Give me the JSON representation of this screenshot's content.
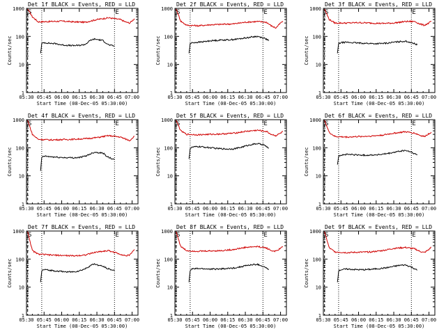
{
  "chart_data": [
    {
      "type": "line",
      "title": "Det 1f BLACK = Events, RED = LLD",
      "xlabel": "Start Time (08-Dec-05 05:30:00)",
      "ylabel": "Counts/sec",
      "x_tick_labels": [
        "05:30",
        "05:45",
        "06:00",
        "06:15",
        "06:30",
        "06:45",
        "07:00"
      ],
      "y_tick_labels": [
        "1",
        "10",
        "100",
        "1000"
      ],
      "ylim": [
        1,
        1000
      ],
      "y_scale": "log",
      "corner_left": "S",
      "corner_right": "E",
      "series": [
        {
          "color": "#d00000",
          "x": [
            1,
            5,
            10,
            20,
            30,
            40,
            50,
            60,
            70,
            80,
            85,
            88,
            90,
            92
          ],
          "y": [
            950,
            500,
            330,
            340,
            350,
            330,
            320,
            400,
            460,
            400,
            320,
            300,
            360,
            430
          ]
        },
        {
          "color": "#000000",
          "x": [
            12,
            13,
            15,
            20,
            25,
            30,
            35,
            40,
            45,
            50,
            55,
            58,
            60,
            65,
            70,
            75
          ],
          "y": [
            25,
            55,
            60,
            57,
            55,
            50,
            48,
            47,
            48,
            52,
            75,
            80,
            78,
            72,
            50,
            45
          ]
        }
      ]
    },
    {
      "type": "line",
      "title": "Det 2f BLACK = Events, RED = LLD",
      "xlabel": "Start Time (08-Dec-05 05:30:00)",
      "ylabel": "Counts/sec",
      "x_tick_labels": [
        "05:30",
        "05:45",
        "06:00",
        "06:15",
        "06:30",
        "06:45",
        "07:00"
      ],
      "y_tick_labels": [
        "1",
        "10",
        "100",
        "1000"
      ],
      "ylim": [
        1,
        1000
      ],
      "y_scale": "log",
      "corner_left": "S",
      "corner_right": "E",
      "series": [
        {
          "color": "#d00000",
          "x": [
            1,
            5,
            10,
            20,
            30,
            40,
            50,
            60,
            70,
            78,
            82,
            86,
            90,
            92
          ],
          "y": [
            950,
            350,
            250,
            240,
            260,
            270,
            280,
            320,
            340,
            320,
            240,
            200,
            300,
            350
          ]
        },
        {
          "color": "#000000",
          "x": [
            12,
            13,
            15,
            20,
            25,
            30,
            35,
            40,
            45,
            50,
            55,
            60,
            65,
            70,
            75,
            78,
            80
          ],
          "y": [
            25,
            55,
            60,
            62,
            65,
            70,
            72,
            75,
            75,
            78,
            82,
            88,
            95,
            100,
            90,
            80,
            70
          ]
        }
      ]
    },
    {
      "type": "line",
      "title": "Det 3f BLACK = Events, RED = LLD",
      "xlabel": "Start Time (08-Dec-05 05:30:00)",
      "ylabel": "Counts/sec",
      "x_tick_labels": [
        "05:30",
        "05:45",
        "06:00",
        "06:15",
        "06:30",
        "06:45",
        "07:00"
      ],
      "y_tick_labels": [
        "1",
        "10",
        "100",
        "1000"
      ],
      "ylim": [
        1,
        1000
      ],
      "y_scale": "log",
      "corner_left": "S",
      "corner_right": "E",
      "series": [
        {
          "color": "#d00000",
          "x": [
            1,
            5,
            10,
            20,
            30,
            40,
            50,
            60,
            70,
            78,
            82,
            86,
            90,
            92
          ],
          "y": [
            950,
            400,
            300,
            300,
            310,
            300,
            290,
            300,
            340,
            340,
            280,
            250,
            300,
            350
          ]
        },
        {
          "color": "#000000",
          "x": [
            12,
            13,
            15,
            20,
            25,
            30,
            35,
            40,
            45,
            50,
            55,
            60,
            65,
            70,
            75,
            78,
            80
          ],
          "y": [
            25,
            55,
            60,
            62,
            60,
            58,
            57,
            56,
            55,
            56,
            58,
            62,
            65,
            68,
            60,
            55,
            50
          ]
        }
      ]
    },
    {
      "type": "line",
      "title": "Det 4f BLACK = Events, RED = LLD",
      "xlabel": "Start Time (08-Dec-05 05:30:00)",
      "ylabel": "Counts/sec",
      "x_tick_labels": [
        "05:30",
        "05:45",
        "06:00",
        "06:15",
        "06:30",
        "06:45",
        "07:00"
      ],
      "y_tick_labels": [
        "1",
        "10",
        "100",
        "1000"
      ],
      "ylim": [
        1,
        1000
      ],
      "y_scale": "log",
      "corner_left": "S",
      "corner_right": "E",
      "series": [
        {
          "color": "#d00000",
          "x": [
            1,
            5,
            10,
            20,
            30,
            40,
            50,
            60,
            70,
            80,
            85,
            88,
            90,
            92
          ],
          "y": [
            950,
            300,
            200,
            190,
            195,
            200,
            210,
            230,
            270,
            240,
            200,
            180,
            220,
            260
          ]
        },
        {
          "color": "#000000",
          "x": [
            12,
            13,
            15,
            20,
            25,
            30,
            35,
            40,
            45,
            50,
            55,
            58,
            60,
            65,
            70,
            75
          ],
          "y": [
            15,
            45,
            50,
            48,
            46,
            45,
            44,
            44,
            45,
            50,
            62,
            70,
            68,
            65,
            45,
            38
          ]
        }
      ]
    },
    {
      "type": "line",
      "title": "Det 5f BLACK = Events, RED = LLD",
      "xlabel": "Start Time (08-Dec-05 05:30:00)",
      "ylabel": "Counts/sec",
      "x_tick_labels": [
        "05:30",
        "05:45",
        "06:00",
        "06:15",
        "06:30",
        "06:45",
        "07:00"
      ],
      "y_tick_labels": [
        "1",
        "10",
        "100",
        "1000"
      ],
      "ylim": [
        1,
        1000
      ],
      "y_scale": "log",
      "corner_left": "S",
      "corner_right": "E",
      "series": [
        {
          "color": "#d00000",
          "x": [
            1,
            5,
            10,
            20,
            30,
            40,
            50,
            60,
            70,
            78,
            82,
            86,
            90,
            92
          ],
          "y": [
            950,
            400,
            300,
            290,
            300,
            310,
            330,
            380,
            420,
            380,
            300,
            270,
            330,
            380
          ]
        },
        {
          "color": "#000000",
          "x": [
            12,
            13,
            15,
            20,
            25,
            30,
            35,
            40,
            45,
            50,
            55,
            60,
            65,
            70,
            75,
            78,
            80
          ],
          "y": [
            40,
            95,
            105,
            110,
            105,
            100,
            95,
            92,
            90,
            92,
            100,
            115,
            130,
            140,
            130,
            110,
            95
          ]
        }
      ]
    },
    {
      "type": "line",
      "title": "Det 6f BLACK = Events, RED = LLD",
      "xlabel": "Start Time (08-Dec-05 05:30:00)",
      "ylabel": "Counts/sec",
      "x_tick_labels": [
        "05:30",
        "05:45",
        "06:00",
        "06:15",
        "06:30",
        "06:45",
        "07:00"
      ],
      "y_tick_labels": [
        "1",
        "10",
        "100",
        "1000"
      ],
      "ylim": [
        1,
        1000
      ],
      "y_scale": "log",
      "corner_left": "S",
      "corner_right": "E",
      "series": [
        {
          "color": "#d00000",
          "x": [
            1,
            5,
            10,
            20,
            30,
            40,
            50,
            60,
            70,
            78,
            82,
            86,
            90,
            92
          ],
          "y": [
            950,
            350,
            250,
            240,
            250,
            260,
            280,
            330,
            370,
            330,
            280,
            250,
            320,
            360
          ]
        },
        {
          "color": "#000000",
          "x": [
            12,
            13,
            15,
            20,
            25,
            30,
            35,
            40,
            45,
            50,
            55,
            60,
            65,
            70,
            75,
            78,
            80
          ],
          "y": [
            25,
            50,
            55,
            58,
            57,
            55,
            54,
            55,
            56,
            58,
            62,
            68,
            75,
            80,
            70,
            60,
            55
          ]
        }
      ]
    },
    {
      "type": "line",
      "title": "Det 7f BLACK = Events, RED = LLD",
      "xlabel": "Start Time (08-Dec-05 05:30:00)",
      "ylabel": "Counts/sec",
      "x_tick_labels": [
        "05:30",
        "05:45",
        "06:00",
        "06:15",
        "06:30",
        "06:45",
        "07:00"
      ],
      "y_tick_labels": [
        "1",
        "10",
        "100",
        "1000"
      ],
      "ylim": [
        1,
        1000
      ],
      "y_scale": "log",
      "corner_left": "S",
      "corner_right": "E",
      "series": [
        {
          "color": "#d00000",
          "x": [
            1,
            5,
            10,
            20,
            30,
            40,
            50,
            60,
            70,
            80,
            85,
            88,
            90,
            92
          ],
          "y": [
            950,
            200,
            150,
            140,
            135,
            130,
            140,
            180,
            200,
            150,
            130,
            140,
            180,
            220
          ]
        },
        {
          "color": "#000000",
          "x": [
            12,
            13,
            15,
            20,
            25,
            30,
            35,
            40,
            45,
            50,
            55,
            58,
            60,
            65,
            70,
            75
          ],
          "y": [
            15,
            38,
            42,
            40,
            38,
            36,
            35,
            35,
            38,
            45,
            60,
            68,
            62,
            55,
            45,
            38
          ]
        }
      ]
    },
    {
      "type": "line",
      "title": "Det 8f BLACK = Events, RED = LLD",
      "xlabel": "Start Time (08-Dec-05 05:30:00)",
      "ylabel": "Counts/sec",
      "x_tick_labels": [
        "05:30",
        "05:45",
        "06:00",
        "06:15",
        "06:30",
        "06:45",
        "07:00"
      ],
      "y_tick_labels": [
        "1",
        "10",
        "100",
        "1000"
      ],
      "ylim": [
        1,
        1000
      ],
      "y_scale": "log",
      "corner_left": "S",
      "corner_right": "E",
      "series": [
        {
          "color": "#d00000",
          "x": [
            1,
            5,
            10,
            20,
            30,
            40,
            50,
            60,
            70,
            78,
            82,
            86,
            90,
            92
          ],
          "y": [
            950,
            280,
            200,
            190,
            195,
            200,
            220,
            260,
            280,
            250,
            200,
            190,
            240,
            280
          ]
        },
        {
          "color": "#000000",
          "x": [
            12,
            13,
            15,
            20,
            25,
            30,
            35,
            40,
            45,
            50,
            55,
            60,
            65,
            70,
            75,
            78,
            80
          ],
          "y": [
            15,
            40,
            45,
            46,
            45,
            44,
            44,
            45,
            46,
            48,
            52,
            58,
            62,
            65,
            55,
            48,
            42
          ]
        }
      ]
    },
    {
      "type": "line",
      "title": "Det 9f BLACK = Events, RED = LLD",
      "xlabel": "Start Time (08-Dec-05 05:30:00)",
      "ylabel": "Counts/sec",
      "x_tick_labels": [
        "05:30",
        "05:45",
        "06:00",
        "06:15",
        "06:30",
        "06:45",
        "07:00"
      ],
      "y_tick_labels": [
        "1",
        "10",
        "100",
        "1000"
      ],
      "ylim": [
        1,
        1000
      ],
      "y_scale": "log",
      "corner_left": "S",
      "corner_right": "E",
      "series": [
        {
          "color": "#d00000",
          "x": [
            1,
            5,
            10,
            20,
            30,
            40,
            50,
            60,
            70,
            78,
            82,
            86,
            90,
            92
          ],
          "y": [
            950,
            250,
            180,
            170,
            175,
            180,
            200,
            240,
            260,
            230,
            190,
            170,
            220,
            270
          ]
        },
        {
          "color": "#000000",
          "x": [
            12,
            13,
            15,
            20,
            25,
            30,
            35,
            40,
            45,
            50,
            55,
            60,
            65,
            70,
            75,
            78,
            80
          ],
          "y": [
            15,
            38,
            42,
            44,
            43,
            42,
            42,
            43,
            45,
            47,
            50,
            55,
            60,
            62,
            52,
            45,
            40
          ]
        }
      ]
    }
  ]
}
